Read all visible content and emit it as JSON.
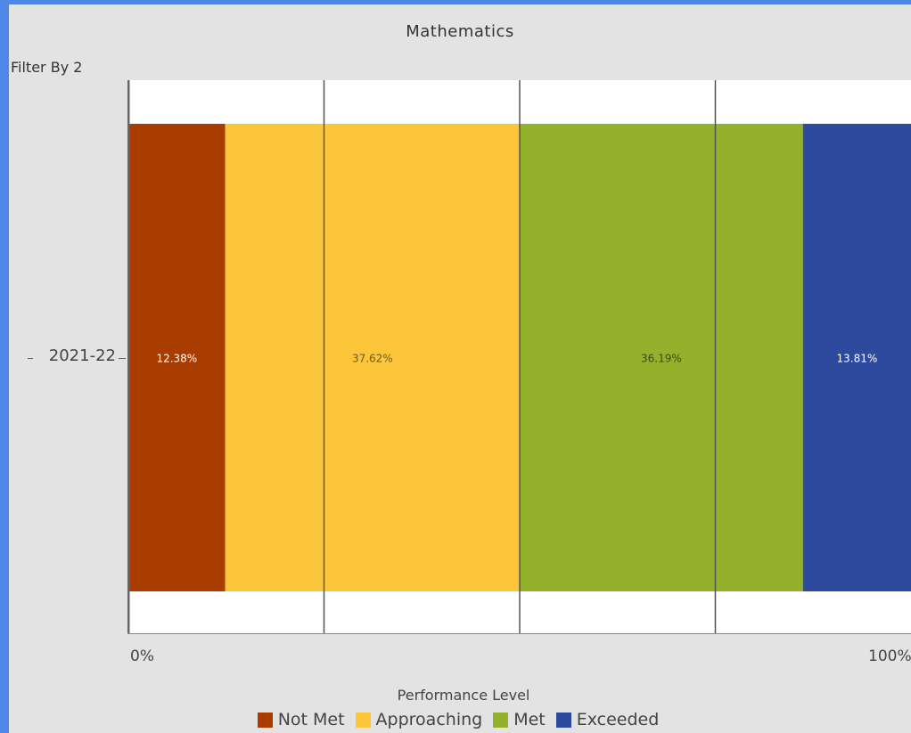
{
  "title": "Mathematics",
  "filter_label": "Filter By 2",
  "colors": {
    "not_met": "#a93d00",
    "approaching": "#fcc63a",
    "met": "#93b12a",
    "exceeded": "#2d4a9e"
  },
  "chart_data": {
    "type": "bar",
    "orientation": "horizontal",
    "stacked": true,
    "categories": [
      "2021-22"
    ],
    "series": [
      {
        "name": "Not Met",
        "values": [
          12.38
        ],
        "label": "12.38%"
      },
      {
        "name": "Approaching",
        "values": [
          37.62
        ],
        "label": "37.62%"
      },
      {
        "name": "Met",
        "values": [
          36.19
        ],
        "label": "36.19%"
      },
      {
        "name": "Exceeded",
        "values": [
          13.81
        ],
        "label": "13.81%"
      }
    ],
    "xlim": [
      0,
      100
    ],
    "x_tick_labels": [
      "0%",
      "100%"
    ],
    "grid": true,
    "legend_title": "Performance Level",
    "legend_position": "bottom"
  }
}
